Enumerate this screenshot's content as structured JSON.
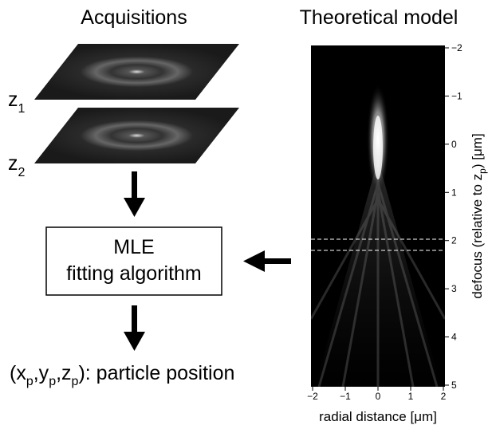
{
  "left": {
    "title": "Acquisitions",
    "planes": [
      {
        "label": "z",
        "sub": "1"
      },
      {
        "label": "z",
        "sub": "2"
      }
    ],
    "box": {
      "line1": "MLE",
      "line2": "fitting algorithm"
    },
    "result": [
      {
        "text": "(x"
      },
      {
        "text": "p",
        "sub": true
      },
      {
        "text": ",y"
      },
      {
        "text": "p",
        "sub": true
      },
      {
        "text": ",z"
      },
      {
        "text": "p",
        "sub": true
      },
      {
        "text": "): particle position"
      }
    ]
  },
  "right": {
    "title": "Theoretical model",
    "y_ticks": [
      "−2",
      "−1",
      "0",
      "1",
      "2",
      "3",
      "4",
      "5"
    ],
    "x_ticks": [
      "−2",
      "−1",
      "0",
      "1",
      "2"
    ],
    "y_label": [
      {
        "text": "defocus (relative to z"
      },
      {
        "text": "p",
        "sub": true
      },
      {
        "text": ") [μm]"
      }
    ],
    "x_label": "radial distance [μm]"
  }
}
